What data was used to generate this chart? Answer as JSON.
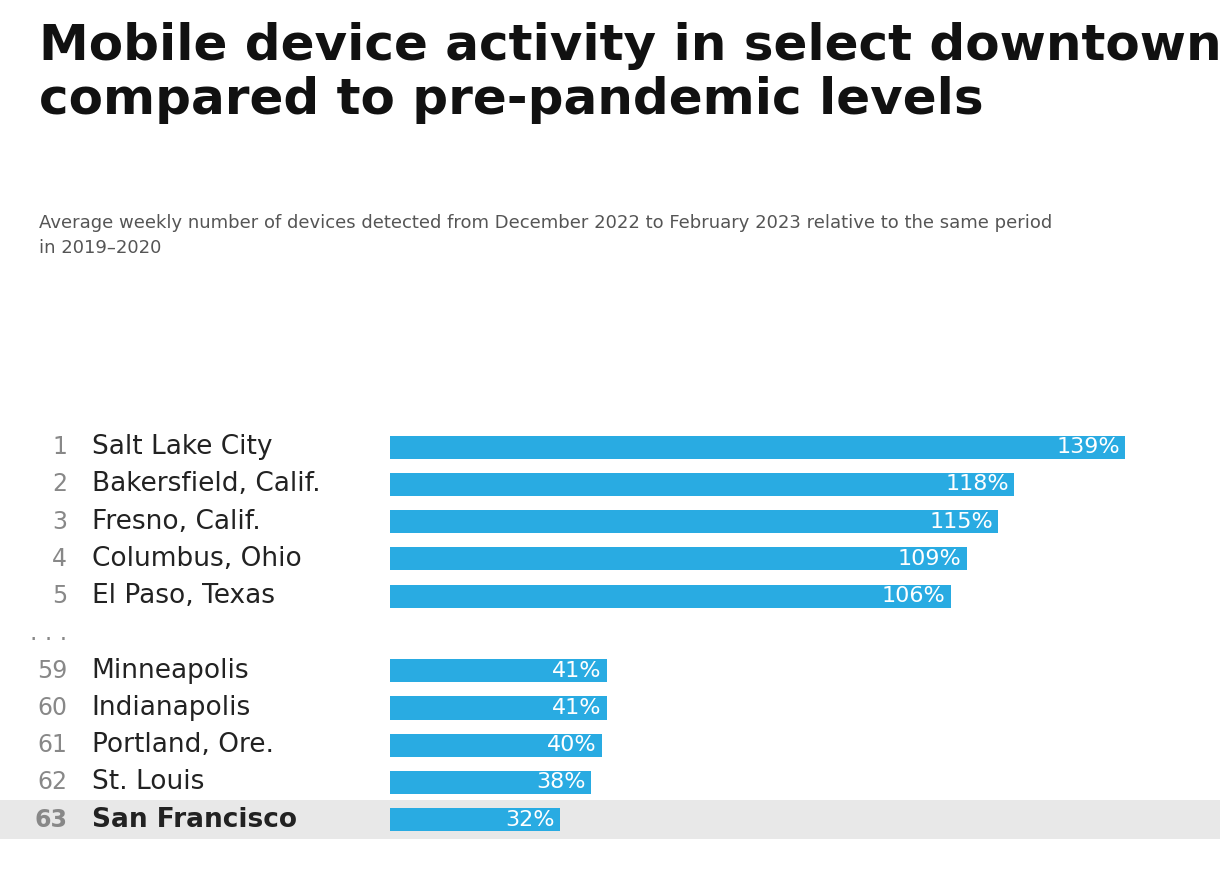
{
  "title": "Mobile device activity in select downtown areas\ncompared to pre-pandemic levels",
  "subtitle": "Average weekly number of devices detected from December 2022 to February 2023 relative to the same period\nin 2019–2020",
  "categories": [
    "Salt Lake City",
    "Bakersfield, Calif.",
    "Fresno, Calif.",
    "Columbus, Ohio",
    "El Paso, Texas",
    "Minneapolis",
    "Indianapolis",
    "Portland, Ore.",
    "St. Louis",
    "San Francisco"
  ],
  "ranks": [
    "1",
    "2",
    "3",
    "4",
    "5",
    "59",
    "60",
    "61",
    "62",
    "63"
  ],
  "values": [
    139,
    118,
    115,
    109,
    106,
    41,
    41,
    40,
    38,
    32
  ],
  "bar_color": "#29ABE2",
  "label_color": "#FFFFFF",
  "background_color": "#FFFFFF",
  "last_row_bg": "#E8E8E8",
  "title_fontsize": 36,
  "subtitle_fontsize": 13,
  "rank_fontsize": 17,
  "city_fontsize": 19,
  "bar_label_fontsize": 16,
  "xlim_max": 150
}
